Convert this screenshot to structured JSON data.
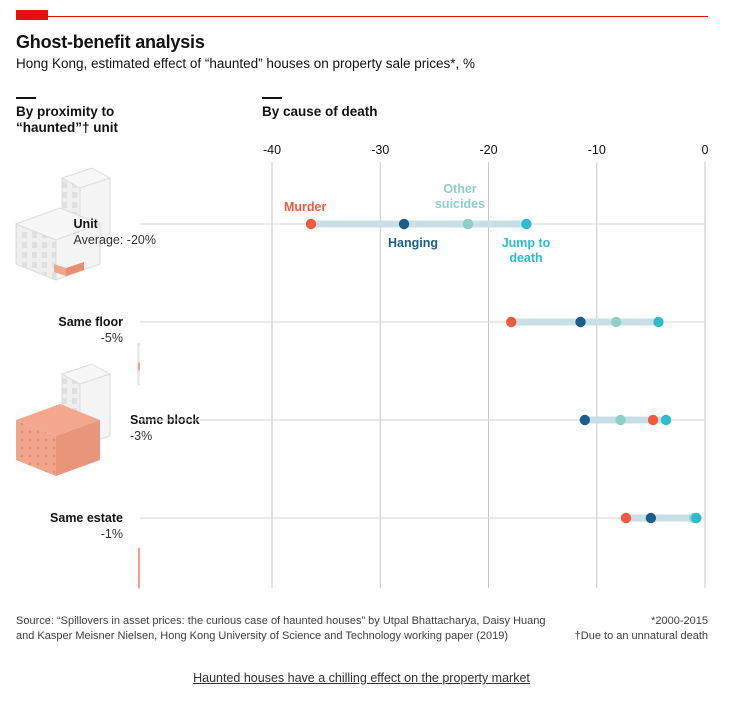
{
  "header": {
    "title": "Ghost-benefit analysis",
    "subtitle": "Hong Kong, estimated effect of “haunted” houses on property sale prices*, %"
  },
  "sections": {
    "left": "By proximity to “haunted”† unit",
    "right": "By cause of death"
  },
  "colors": {
    "accent": "#e3120b",
    "murder": "#f15a3c",
    "hanging": "#1b5d8c",
    "other_suicides": "#8ecfc9",
    "jump_to_death": "#2dbccc",
    "range_bar": "#c9dfe8",
    "building_highlight": "#f0a58c",
    "building_grey": "#eeeeee"
  },
  "chart_data": {
    "type": "scatter",
    "title": "Ghost-benefit analysis",
    "subtitle": "Hong Kong, estimated effect of “haunted” houses on property sale prices*, %",
    "xlabel": "By cause of death",
    "ylabel": "By proximity to “haunted”† unit",
    "xlim": [
      -40,
      0
    ],
    "xticks": [
      "-40",
      "-30",
      "-20",
      "-10",
      "0"
    ],
    "grid": true,
    "categories": [
      "Unit",
      "Same floor",
      "Same block",
      "Same estate"
    ],
    "category_sublabels": [
      "Average: -20%",
      "-5%",
      "-3%",
      "-1%"
    ],
    "series": [
      {
        "name": "Murder",
        "color": "#f15a3c",
        "values": [
          -36.4,
          -17.9,
          -4.8,
          -7.3
        ]
      },
      {
        "name": "Hanging",
        "color": "#1b5d8c",
        "values": [
          -27.8,
          -11.5,
          -11.1,
          -5.0
        ]
      },
      {
        "name": "Other suicides",
        "color": "#8ecfc9",
        "values": [
          -21.9,
          -8.2,
          -7.8,
          -1.0
        ]
      },
      {
        "name": "Jump to death",
        "color": "#2dbccc",
        "values": [
          -16.5,
          -4.3,
          -3.6,
          -0.8
        ]
      }
    ],
    "annotations": [
      {
        "text": "Murder",
        "series": "Murder"
      },
      {
        "text": "Other suicides",
        "series": "Other suicides"
      },
      {
        "text": "Hanging",
        "series": "Hanging"
      },
      {
        "text": "Jump to death",
        "series": "Jump to death"
      }
    ]
  },
  "footer": {
    "source_line1": "Source: “Spillovers in asset prices: the curious case of haunted houses” by Utpal Bhattacharya, Daisy Huang",
    "source_line2": "and Kasper Meisner Nielsen, Hong Kong University of Science and Technology working paper (2019)",
    "note1": "*2000-2015",
    "note2": "†Due to an unnatural death",
    "caption": "Haunted houses have a chilling effect on the property market"
  }
}
